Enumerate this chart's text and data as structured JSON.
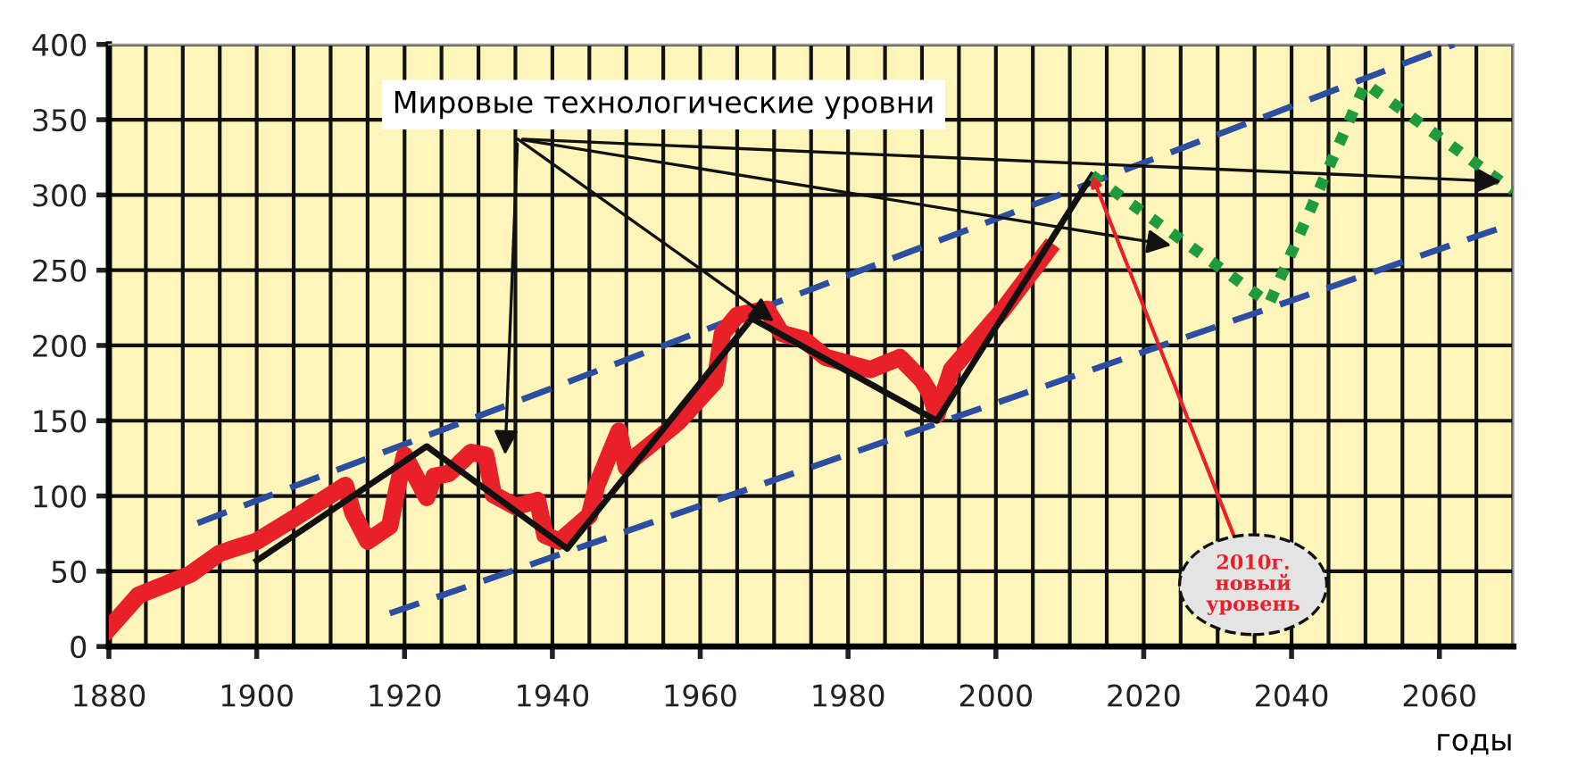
{
  "chart_data": {
    "type": "line",
    "xlabel": "годы",
    "xlim": [
      1880,
      2070
    ],
    "ylim": [
      0,
      400
    ],
    "xticks": [
      1880,
      {
        "value": 1885,
        "label": null
      },
      {
        "value": 1890,
        "label": null
      },
      {
        "value": 1895,
        "label": null
      },
      1900,
      {
        "value": 1905,
        "label": null
      },
      {
        "value": 1910,
        "label": null
      },
      {
        "value": 1915,
        "label": null
      },
      1920,
      {
        "value": 1925,
        "label": null
      },
      {
        "value": 1930,
        "label": null
      },
      {
        "value": 1935,
        "label": null
      },
      1940,
      {
        "value": 1945,
        "label": null
      },
      {
        "value": 1950,
        "label": null
      },
      {
        "value": 1955,
        "label": null
      },
      1960,
      {
        "value": 1965,
        "label": null
      },
      {
        "value": 1970,
        "label": null
      },
      {
        "value": 1975,
        "label": null
      },
      1980,
      {
        "value": 1985,
        "label": null
      },
      {
        "value": 1990,
        "label": null
      },
      {
        "value": 1995,
        "label": null
      },
      2000,
      {
        "value": 2005,
        "label": null
      },
      {
        "value": 2010,
        "label": null
      },
      {
        "value": 2015,
        "label": null
      },
      2020,
      {
        "value": 2025,
        "label": null
      },
      {
        "value": 2030,
        "label": null
      },
      {
        "value": 2035,
        "label": null
      },
      2040,
      {
        "value": 2045,
        "label": null
      },
      {
        "value": 2050,
        "label": null
      },
      {
        "value": 2055,
        "label": null
      },
      2060,
      {
        "value": 2065,
        "label": null
      },
      {
        "value": 2070,
        "label": null
      }
    ],
    "yticks": [
      0,
      50,
      100,
      150,
      200,
      250,
      300,
      350,
      400
    ],
    "grid": true,
    "series": [
      {
        "color": "#2b4ea0",
        "line_style": "dashed",
        "x": [
          1892,
          2062
        ],
        "values": [
          82,
          400
        ]
      },
      {
        "color": "#2b4ea0",
        "line_style": "dashed",
        "x": [
          1918,
          2070
        ],
        "values": [
          22,
          281
        ]
      },
      {
        "color": "#e8202a",
        "x": [
          1880,
          1884,
          1887,
          1891,
          1895,
          1900,
          1905,
          1912,
          1913,
          1915,
          1918,
          1919,
          1920,
          1923,
          1924,
          1926,
          1929,
          1931,
          1932,
          1935,
          1938,
          1939,
          1941,
          1945,
          1946,
          1949,
          1950,
          1951,
          1954,
          1957,
          1962,
          1963,
          1965,
          1969,
          1971,
          1974,
          1977,
          1983,
          1987,
          1990,
          1991,
          1992,
          1994,
          2001,
          2007
        ],
        "values": [
          12,
          34,
          40,
          48,
          62,
          70,
          85,
          107,
          89,
          70,
          80,
          105,
          127,
          99,
          113,
          115,
          129,
          127,
          101,
          93,
          97,
          74,
          70,
          87,
          107,
          143,
          119,
          125,
          137,
          149,
          176,
          208,
          220,
          224,
          208,
          204,
          192,
          184,
          192,
          177,
          169,
          154,
          184,
          224,
          263
        ]
      },
      {
        "color": "#111111",
        "x": [
          1900,
          1923,
          1942,
          1967,
          1992,
          2013
        ],
        "values": [
          57,
          133,
          65,
          218,
          150,
          313
        ]
      },
      {
        "color": "#1f9a3c",
        "line_style": "dotted",
        "x": [
          2013,
          2037,
          2050,
          2070
        ],
        "values": [
          313,
          228,
          374,
          303
        ]
      }
    ],
    "annotations": [
      {
        "text": "Мировые технологические уровни",
        "x": 1970,
        "y": 216
      },
      {
        "text": "2010г.\nновый\nуровень",
        "x": 2013,
        "y": 313
      }
    ]
  }
}
